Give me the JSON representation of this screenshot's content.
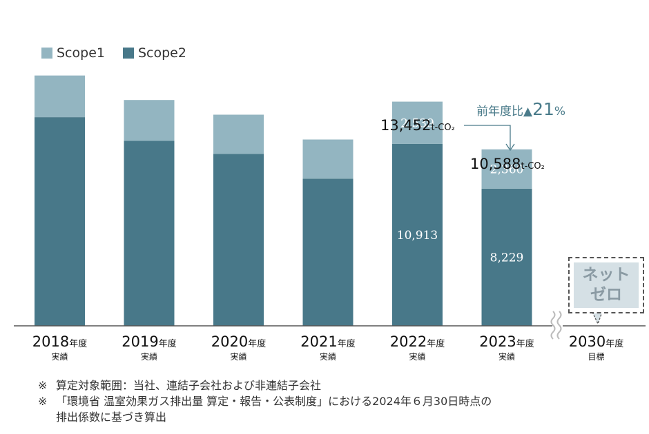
{
  "legend": {
    "scope1": "Scope1",
    "scope2": "Scope2"
  },
  "colors": {
    "scope1": "#93b5c1",
    "scope2": "#487889",
    "yoy": "#4a7b8a",
    "target_fill": "#d5e0e5"
  },
  "chart_data": {
    "type": "bar",
    "stacked": true,
    "categories": [
      "2018",
      "2019",
      "2020",
      "2021",
      "2022",
      "2023",
      "2030"
    ],
    "series": [
      {
        "name": "Scope1",
        "values": [
          null,
          null,
          null,
          null,
          2539,
          2360,
          null
        ]
      },
      {
        "name": "Scope2",
        "values": [
          null,
          null,
          null,
          null,
          10913,
          8229,
          null
        ]
      }
    ],
    "estimated_series": [
      {
        "name": "Scope1",
        "values": [
          2500,
          2450,
          2350,
          2350,
          2539,
          2360,
          null
        ]
      },
      {
        "name": "Scope2",
        "values": [
          12520,
          11100,
          10320,
          8830,
          10913,
          8229,
          null
        ]
      }
    ],
    "data_labels": {
      "scope1": [
        "",
        "",
        "",
        "",
        "2,539",
        "2,360",
        ""
      ],
      "scope2": [
        "",
        "",
        "",
        "",
        "10,913",
        "8,229",
        ""
      ]
    },
    "ylim": [
      0,
      15500
    ],
    "grid": false,
    "legend_position": "top-left"
  },
  "x_labels": [
    {
      "year": "2018",
      "suffix": "年度",
      "sub": "実績"
    },
    {
      "year": "2019",
      "suffix": "年度",
      "sub": "実績"
    },
    {
      "year": "2020",
      "suffix": "年度",
      "sub": "実績"
    },
    {
      "year": "2021",
      "suffix": "年度",
      "sub": "実績"
    },
    {
      "year": "2022",
      "suffix": "年度",
      "sub": "実績"
    },
    {
      "year": "2023",
      "suffix": "年度",
      "sub": "実績"
    },
    {
      "year": "2030",
      "suffix": "年度",
      "sub": "目標"
    }
  ],
  "totals": {
    "y2022": {
      "value": "13,452",
      "unit": "t-CO₂"
    },
    "y2023": {
      "value": "10,588",
      "unit": "t-CO₂"
    }
  },
  "yoy": {
    "prefix": "前年度比▲",
    "value": "21",
    "suffix": "%"
  },
  "target": {
    "line1": "ネット",
    "line2": "ゼロ"
  },
  "notes": [
    {
      "mark": "※",
      "text": "算定対象範囲：当社、連結子会社および非連結子会社"
    },
    {
      "mark": "※",
      "text": "「環境省 温室効果ガス排出量 算定・報告・公表制度」における2024年６月30日時点の"
    },
    {
      "mark": "",
      "text": "排出係数に基づき算出"
    }
  ]
}
